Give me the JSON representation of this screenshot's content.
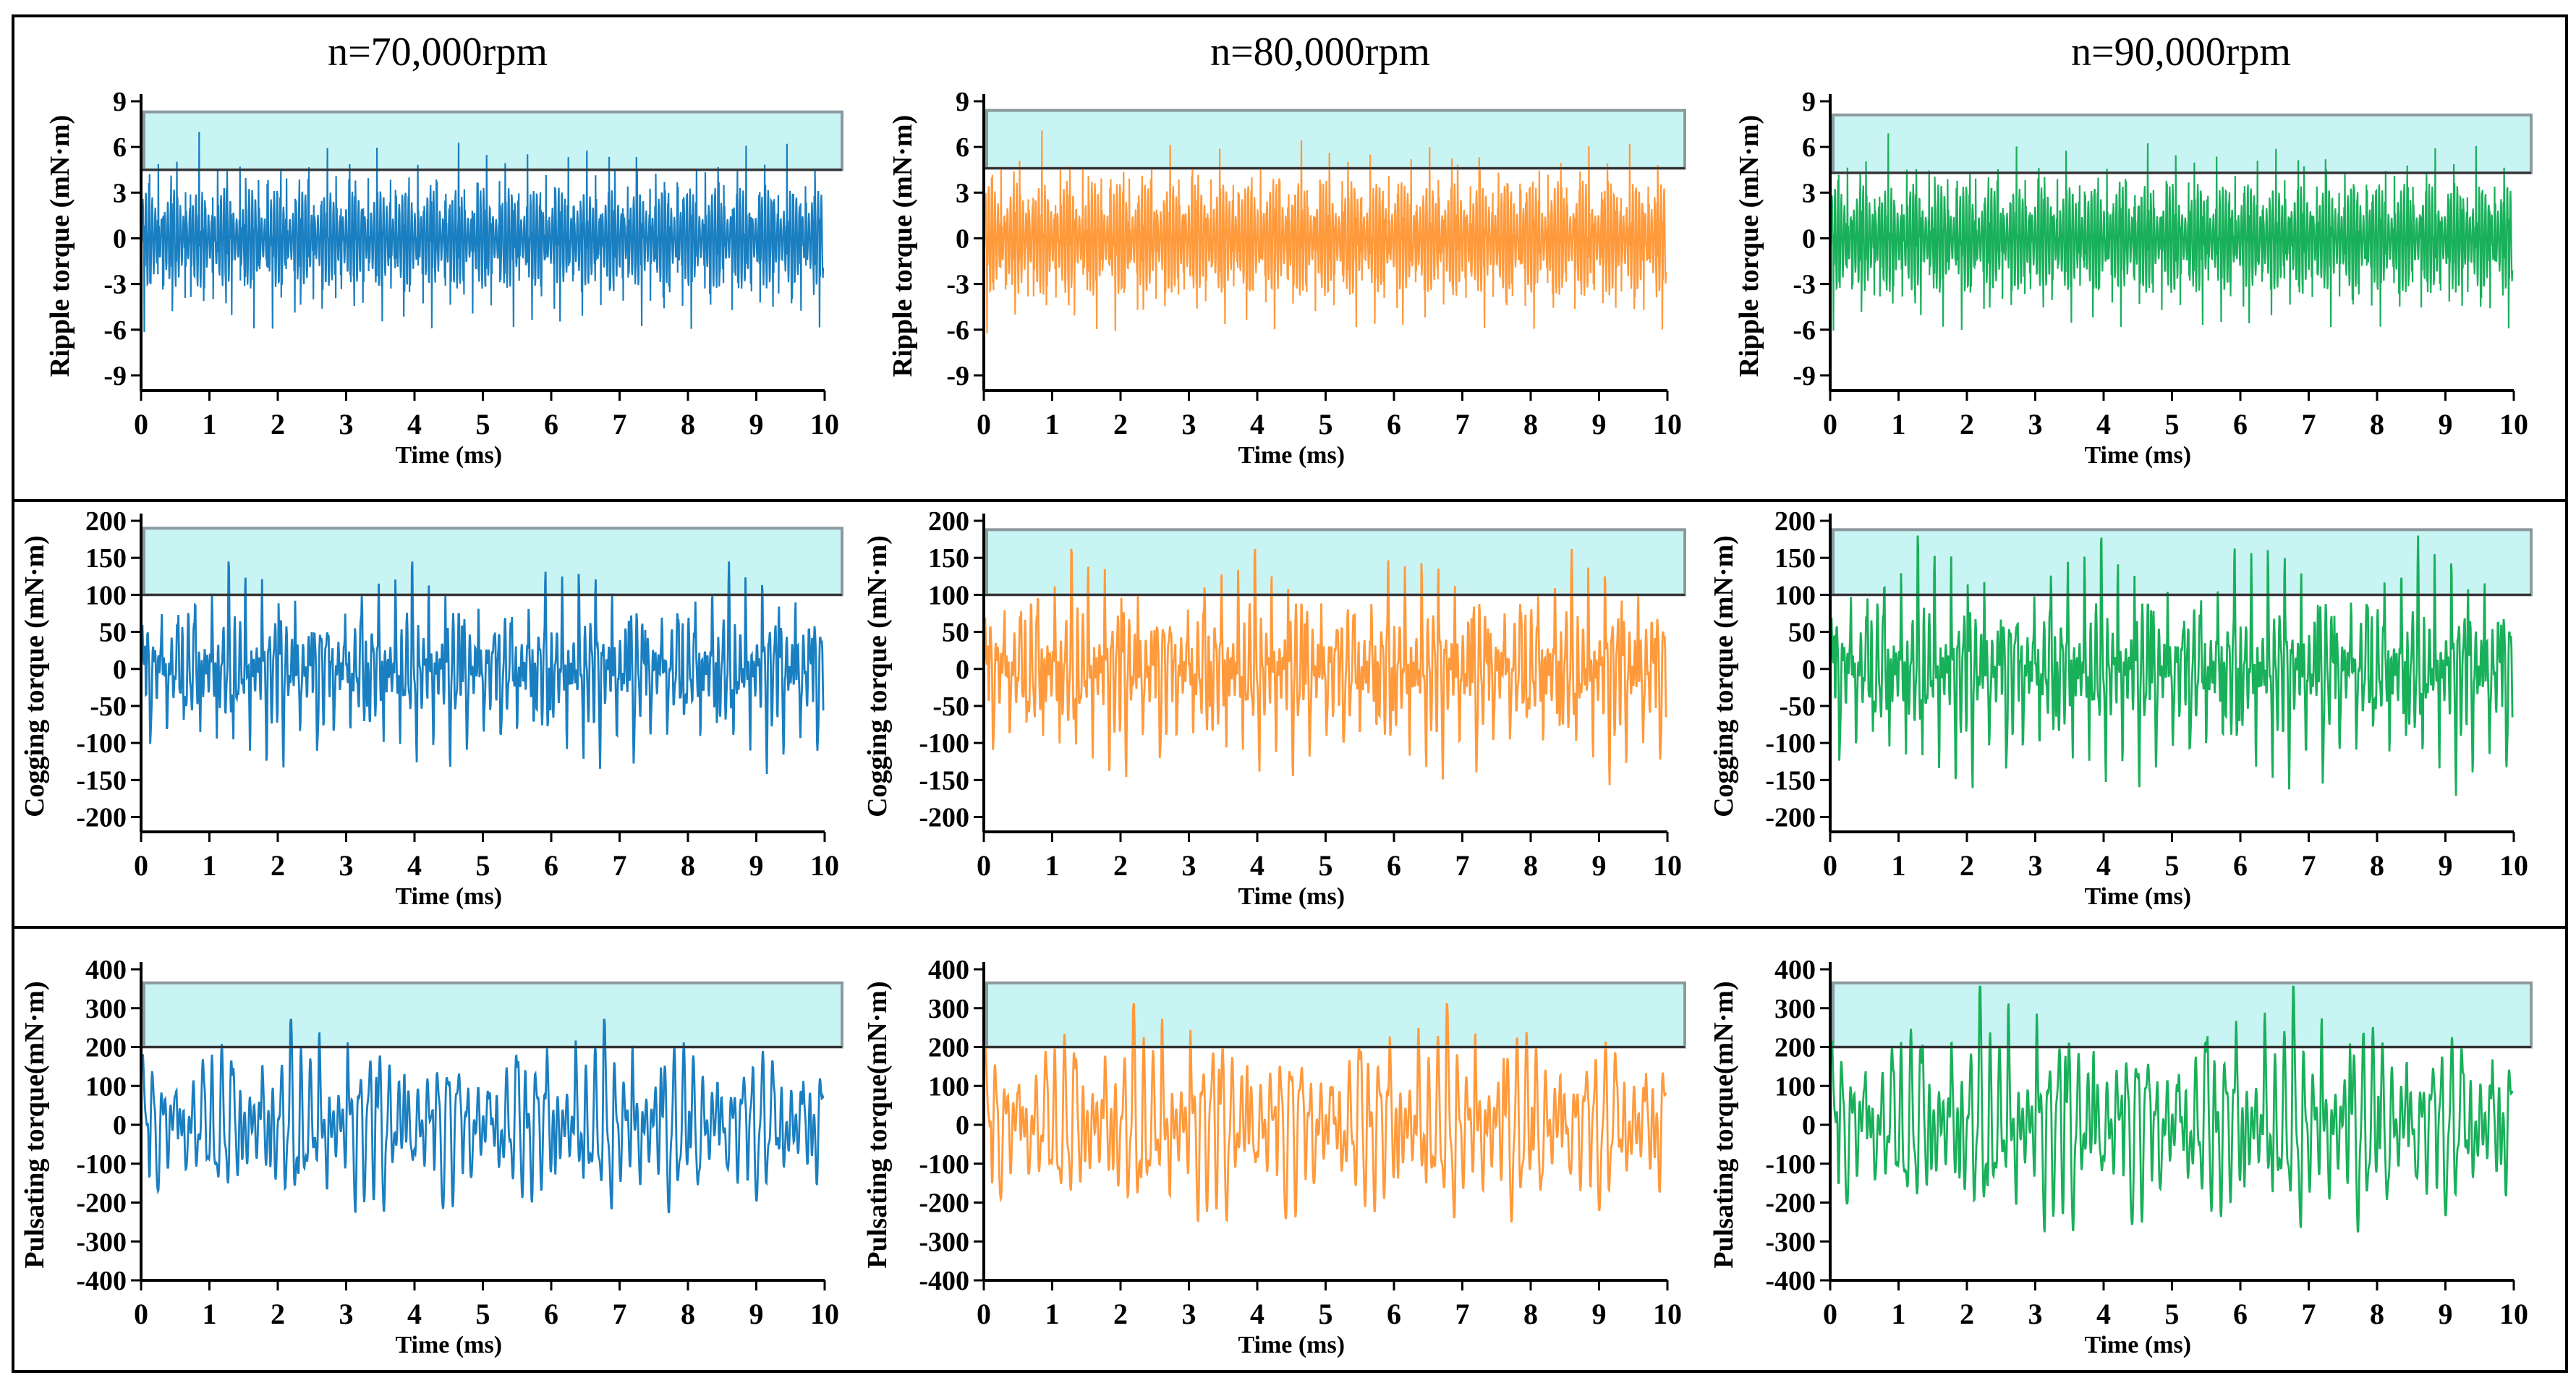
{
  "column_titles": [
    "n=70,000rpm",
    "n=80,000rpm",
    "n=90,000rpm"
  ],
  "colors": {
    "col0": "#1a7fc1",
    "col1": "#ff9a3c",
    "col2": "#19b05a",
    "band_fill": "#c9f4f4",
    "band_stroke": "#8c9aa0"
  },
  "chart_data": [
    {
      "type": "line",
      "row": 0,
      "col": 0,
      "ylabel": "Ripple torque (mN·m)",
      "xlabel": "Time (ms)",
      "xlim": [
        0,
        10
      ],
      "ylim": [
        -10,
        9
      ],
      "yticks": [
        -9,
        -6,
        -3,
        0,
        3,
        6,
        9
      ],
      "yticklabels": [
        "-9",
        "-6",
        "-3",
        "0",
        "3",
        "6",
        "9"
      ],
      "xticks": [
        0,
        1,
        2,
        3,
        4,
        5,
        6,
        7,
        8,
        9,
        10
      ],
      "band": [
        4.5,
        8.3
      ],
      "peak_max": 7.4,
      "peak_min": -7.1,
      "core": 3.5,
      "fine": true
    },
    {
      "type": "line",
      "row": 0,
      "col": 1,
      "ylabel": "Ripple torque (mN·m)",
      "xlabel": "Time (ms)",
      "xlim": [
        0,
        10
      ],
      "ylim": [
        -10,
        9
      ],
      "yticks": [
        -9,
        -6,
        -3,
        0,
        3,
        6,
        9
      ],
      "yticklabels": [
        "-9",
        "-6",
        "-3",
        "0",
        "3",
        "6",
        "9"
      ],
      "xticks": [
        0,
        1,
        2,
        3,
        4,
        5,
        6,
        7,
        8,
        9,
        10
      ],
      "band": [
        4.6,
        8.4
      ],
      "peak_max": 7.5,
      "peak_min": -7.3,
      "core": 4.0,
      "fine": true
    },
    {
      "type": "line",
      "row": 0,
      "col": 2,
      "ylabel": "Ripple torque (mN·m)",
      "xlabel": "Time (ms)",
      "xlim": [
        0,
        10
      ],
      "ylim": [
        -10,
        9
      ],
      "yticks": [
        -9,
        -6,
        -3,
        0,
        3,
        6,
        9
      ],
      "yticklabels": [
        "-9",
        "-6",
        "-3",
        "0",
        "3",
        "6",
        "9"
      ],
      "xticks": [
        0,
        1,
        2,
        3,
        4,
        5,
        6,
        7,
        8,
        9,
        10
      ],
      "band": [
        4.3,
        8.1
      ],
      "peak_max": 7.3,
      "peak_min": -7.2,
      "core": 3.8,
      "fine": true
    },
    {
      "type": "line",
      "row": 1,
      "col": 0,
      "ylabel": "Cogging torque (mN·m)",
      "xlabel": "Time (ms)",
      "xlim": [
        0,
        10
      ],
      "ylim": [
        -220,
        200
      ],
      "yticks": [
        -200,
        -150,
        -100,
        -50,
        0,
        50,
        100,
        150,
        200
      ],
      "yticklabels": [
        "-200",
        "-150",
        "-100",
        "-50",
        "0",
        "50",
        "100",
        "150",
        "200"
      ],
      "xticks": [
        0,
        1,
        2,
        3,
        4,
        5,
        6,
        7,
        8,
        9,
        10
      ],
      "band": [
        100,
        190
      ],
      "peak_max": 145,
      "peak_min": -145,
      "core": 60,
      "fine": false
    },
    {
      "type": "line",
      "row": 1,
      "col": 1,
      "ylabel": "Cogging torque (mN·m)",
      "xlabel": "Time (ms)",
      "xlim": [
        0,
        10
      ],
      "ylim": [
        -220,
        200
      ],
      "yticks": [
        -200,
        -150,
        -100,
        -50,
        0,
        50,
        100,
        150,
        200
      ],
      "yticklabels": [
        "-200",
        "-150",
        "-100",
        "-50",
        "0",
        "50",
        "100",
        "150",
        "200"
      ],
      "xticks": [
        0,
        1,
        2,
        3,
        4,
        5,
        6,
        7,
        8,
        9,
        10
      ],
      "band": [
        100,
        188
      ],
      "peak_max": 162,
      "peak_min": -160,
      "core": 70,
      "fine": false
    },
    {
      "type": "line",
      "row": 1,
      "col": 2,
      "ylabel": "Cogging torque (mN·m)",
      "xlabel": "Time (ms)",
      "xlim": [
        0,
        10
      ],
      "ylim": [
        -220,
        200
      ],
      "yticks": [
        -200,
        -150,
        -100,
        -50,
        0,
        50,
        100,
        150,
        200
      ],
      "yticklabels": [
        "-200",
        "-150",
        "-100",
        "-50",
        "0",
        "50",
        "100",
        "150",
        "200"
      ],
      "xticks": [
        0,
        1,
        2,
        3,
        4,
        5,
        6,
        7,
        8,
        9,
        10
      ],
      "band": [
        100,
        188
      ],
      "peak_max": 180,
      "peak_min": -175,
      "core": 70,
      "fine": false
    },
    {
      "type": "line",
      "row": 2,
      "col": 0,
      "ylabel": "Pulsating torque(mN·m)",
      "xlabel": "Time (ms)",
      "xlim": [
        0,
        10
      ],
      "ylim": [
        -400,
        400
      ],
      "yticks": [
        -400,
        -300,
        -200,
        -100,
        0,
        100,
        200,
        300,
        400
      ],
      "yticklabels": [
        "-400",
        "-300",
        "-200",
        "-100",
        "0",
        "100",
        "200",
        "300",
        "400"
      ],
      "xticks": [
        0,
        1,
        2,
        3,
        4,
        5,
        6,
        7,
        8,
        9,
        10
      ],
      "band": [
        200,
        365
      ],
      "peak_max": 270,
      "peak_min": -245,
      "core": 160,
      "fine": false
    },
    {
      "type": "line",
      "row": 2,
      "col": 1,
      "ylabel": "Pulsating torque(mN·m)",
      "xlabel": "Time (ms)",
      "xlim": [
        0,
        10
      ],
      "ylim": [
        -400,
        400
      ],
      "yticks": [
        -400,
        -300,
        -200,
        -100,
        0,
        100,
        200,
        300,
        400
      ],
      "yticklabels": [
        "-400",
        "-300",
        "-200",
        "-100",
        "0",
        "100",
        "200",
        "300",
        "400"
      ],
      "xticks": [
        0,
        1,
        2,
        3,
        4,
        5,
        6,
        7,
        8,
        9,
        10
      ],
      "band": [
        200,
        365
      ],
      "peak_max": 310,
      "peak_min": -270,
      "core": 180,
      "fine": false
    },
    {
      "type": "line",
      "row": 2,
      "col": 2,
      "ylabel": "Pulsating torque(mN·m)",
      "xlabel": "Time (ms)",
      "xlim": [
        0,
        10
      ],
      "ylim": [
        -400,
        400
      ],
      "yticks": [
        -400,
        -300,
        -200,
        -100,
        0,
        100,
        200,
        300,
        400
      ],
      "yticklabels": [
        "-400",
        "-300",
        "-200",
        "-100",
        "0",
        "100",
        "200",
        "300",
        "400"
      ],
      "xticks": [
        0,
        1,
        2,
        3,
        4,
        5,
        6,
        7,
        8,
        9,
        10
      ],
      "band": [
        200,
        365
      ],
      "peak_max": 355,
      "peak_min": -300,
      "core": 190,
      "fine": false
    }
  ]
}
